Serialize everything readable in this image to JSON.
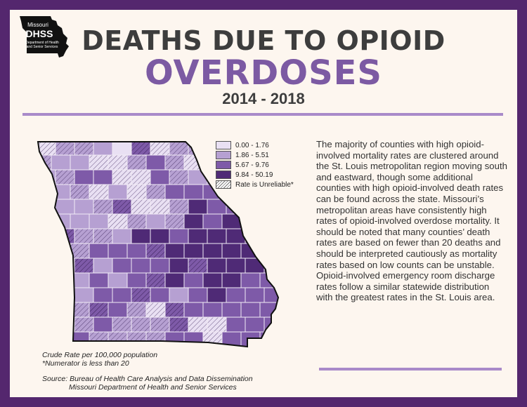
{
  "logo": {
    "line1": "Missouri",
    "line2": "DHSS",
    "line3": "Department of Health",
    "line4": "and Senior Services"
  },
  "title": {
    "line1": "DEATHS DUE TO OPIOID",
    "line2": "OVERDOSES",
    "years": "2014 - 2018"
  },
  "legend": {
    "items": [
      {
        "label": "0.00 - 1.76",
        "color": "#e9e0f3"
      },
      {
        "label": "1.86 - 5.51",
        "color": "#b6a0d2"
      },
      {
        "label": "5.67 - 9.76",
        "color": "#7e5aa8"
      },
      {
        "label": "9.84 - 50.19",
        "color": "#4f2a76"
      }
    ],
    "unreliable_label": "Rate is Unreliable*"
  },
  "description": "The majority of counties with high opioid-involved mortality rates are clustered around the St. Louis metropolitan region moving south and eastward, though some additional counties with high opioid-involved death rates can be found across the state. Missouri’s metropolitan areas have consistently high rates of opioid-involved overdose mortality. It should be noted that many counties’ death rates are based on fewer than 20 deaths and should be interpreted cautiously as mortality rates based on low counts can be unstable. Opioid-involved emergency room discharge rates follow a similar statewide distribution with the greatest rates in the St. Louis area.",
  "notes": {
    "line1": "Crude Rate per 100,000 population",
    "line2": "*Numerator is less than 20"
  },
  "source": {
    "line1": "Source: Bureau of Health Care Analysis and Data Dissemination",
    "line2": "Missouri Department of Health and Senior Services"
  }
}
